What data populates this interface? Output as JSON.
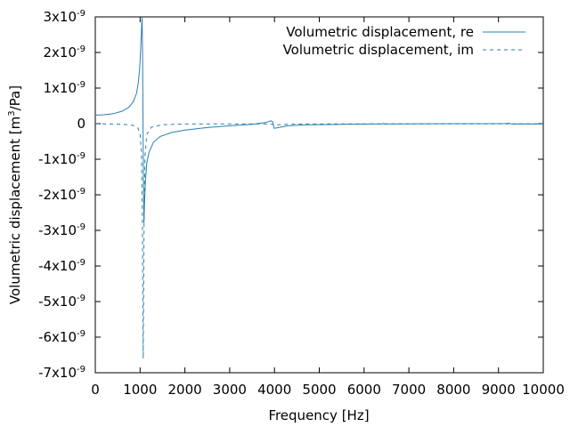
{
  "chart_data": {
    "type": "line",
    "title": "",
    "xlabel": "Frequency [Hz]",
    "ylabel_prefix": "Volumetric displacement [m",
    "ylabel_sup": "3",
    "ylabel_suffix": "/Pa]",
    "xlim": [
      0,
      10000
    ],
    "ylim": [
      -7e-09,
      3e-09
    ],
    "grid": false,
    "legend_position": "top-right",
    "x_ticks": [
      0,
      1000,
      2000,
      3000,
      4000,
      5000,
      6000,
      7000,
      8000,
      9000,
      10000
    ],
    "x_tick_labels": [
      "0",
      "1000",
      "2000",
      "3000",
      "4000",
      "5000",
      "6000",
      "7000",
      "8000",
      "9000",
      "10000"
    ],
    "y_ticks": [
      {
        "value": 3e-09,
        "mant": "3x10",
        "exp": "-9"
      },
      {
        "value": 2e-09,
        "mant": "2x10",
        "exp": "-9"
      },
      {
        "value": 1e-09,
        "mant": "1x10",
        "exp": "-9"
      },
      {
        "value": 0,
        "mant": "0",
        "exp": ""
      },
      {
        "value": -1e-09,
        "mant": "-1x10",
        "exp": "-9"
      },
      {
        "value": -2e-09,
        "mant": "-2x10",
        "exp": "-9"
      },
      {
        "value": -3e-09,
        "mant": "-3x10",
        "exp": "-9"
      },
      {
        "value": -4e-09,
        "mant": "-4x10",
        "exp": "-9"
      },
      {
        "value": -5e-09,
        "mant": "-5x10",
        "exp": "-9"
      },
      {
        "value": -6e-09,
        "mant": "-6x10",
        "exp": "-9"
      },
      {
        "value": -7e-09,
        "mant": "-7x10",
        "exp": "-9"
      }
    ],
    "series": [
      {
        "name": "Volumetric displacement, re",
        "style": "solid",
        "color": "#2a7fb0",
        "points": [
          [
            0,
            2.4e-10
          ],
          [
            200,
            2.5e-10
          ],
          [
            400,
            2.8e-10
          ],
          [
            600,
            3.5e-10
          ],
          [
            750,
            4.6e-10
          ],
          [
            850,
            6.2e-10
          ],
          [
            920,
            8.5e-10
          ],
          [
            960,
            1.15e-09
          ],
          [
            990,
            1.55e-09
          ],
          [
            1010,
            2e-09
          ],
          [
            1030,
            2.6e-09
          ],
          [
            1045,
            3e-09
          ],
          [
            1055,
            2e-09
          ],
          [
            1065,
            0
          ],
          [
            1075,
            -1.5e-09
          ],
          [
            1085,
            -2.8e-09
          ],
          [
            1100,
            -2.2e-09
          ],
          [
            1120,
            -1.6e-09
          ],
          [
            1150,
            -1.1e-09
          ],
          [
            1200,
            -8e-10
          ],
          [
            1300,
            -5.2e-10
          ],
          [
            1450,
            -3.6e-10
          ],
          [
            1700,
            -2.5e-10
          ],
          [
            2000,
            -1.8e-10
          ],
          [
            2500,
            -1.1e-10
          ],
          [
            3000,
            -6e-11
          ],
          [
            3500,
            -2e-11
          ],
          [
            3800,
            3e-11
          ],
          [
            3920,
            8e-11
          ],
          [
            3960,
            5e-11
          ],
          [
            3990,
            -1.3e-10
          ],
          [
            4050,
            -1.2e-10
          ],
          [
            4300,
            -6e-11
          ],
          [
            4700,
            -3e-11
          ],
          [
            5500,
            -2e-11
          ],
          [
            6200,
            -1e-11
          ],
          [
            6400,
            -1e-11
          ],
          [
            6420,
            1e-11
          ],
          [
            6450,
            -1e-11
          ],
          [
            7000,
            -5e-12
          ],
          [
            8000,
            0
          ],
          [
            9100,
            0
          ],
          [
            9250,
            1e-11
          ],
          [
            9280,
            -1e-11
          ],
          [
            9500,
            -5e-12
          ],
          [
            10000,
            -1e-11
          ]
        ]
      },
      {
        "name": "Volumetric displacement, im",
        "style": "dashed",
        "color": "#2a7fb0",
        "points": [
          [
            0,
            -5e-12
          ],
          [
            400,
            -1e-11
          ],
          [
            700,
            -2.5e-11
          ],
          [
            850,
            -5e-11
          ],
          [
            950,
            -1.2e-10
          ],
          [
            1000,
            -3e-10
          ],
          [
            1030,
            -8e-10
          ],
          [
            1050,
            -2.5e-09
          ],
          [
            1060,
            -4.8e-09
          ],
          [
            1070,
            -6.6e-09
          ],
          [
            1080,
            -4.8e-09
          ],
          [
            1090,
            -2.5e-09
          ],
          [
            1110,
            -9e-10
          ],
          [
            1150,
            -3e-10
          ],
          [
            1250,
            -1e-10
          ],
          [
            1500,
            -3e-11
          ],
          [
            2000,
            -1e-11
          ],
          [
            3000,
            -5e-12
          ],
          [
            3900,
            -1e-11
          ],
          [
            3960,
            -2e-11
          ],
          [
            4000,
            -5e-11
          ],
          [
            4080,
            -3e-11
          ],
          [
            4500,
            -1e-11
          ],
          [
            6000,
            -5e-12
          ],
          [
            7000,
            -5e-12
          ],
          [
            9200,
            -5e-12
          ],
          [
            9250,
            -2e-11
          ],
          [
            9300,
            -5e-12
          ],
          [
            10000,
            -5e-12
          ]
        ]
      }
    ]
  }
}
